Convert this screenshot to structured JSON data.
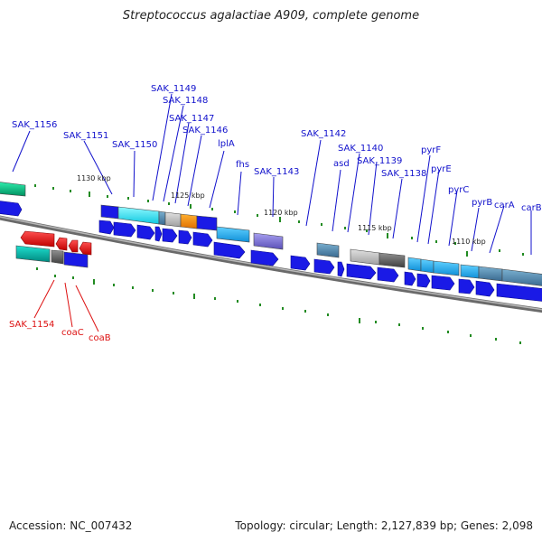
{
  "title": "Streptococcus agalactiae A909, complete genome",
  "accession": "Accession: NC_007432",
  "summary": "Topology: circular; Length: 2,127,839 bp; Genes: 2,098",
  "colors": {
    "label_forward": "#1111cc",
    "label_reverse": "#dd1111",
    "gene_blue": "#1a1ae6",
    "backbone": "#888888",
    "tick": "#228b22"
  },
  "scale_labels": [
    "1130 kbp",
    "1125 kbp",
    "1120 kbp",
    "1115 kbp",
    "1110 kbp"
  ],
  "forward_labels": [
    "SAK_1156",
    "SAK_1151",
    "SAK_1150",
    "SAK_1149",
    "SAK_1148",
    "SAK_1147",
    "SAK_1146",
    "lplA",
    "fhs",
    "SAK_1143",
    "SAK_1142",
    "asd",
    "SAK_1140",
    "SAK_1139",
    "SAK_1138",
    "pyrF",
    "pyrE",
    "pyrC",
    "pyrB",
    "carA",
    "carB"
  ],
  "reverse_labels": [
    "SAK_1154",
    "coaC",
    "coaB"
  ]
}
